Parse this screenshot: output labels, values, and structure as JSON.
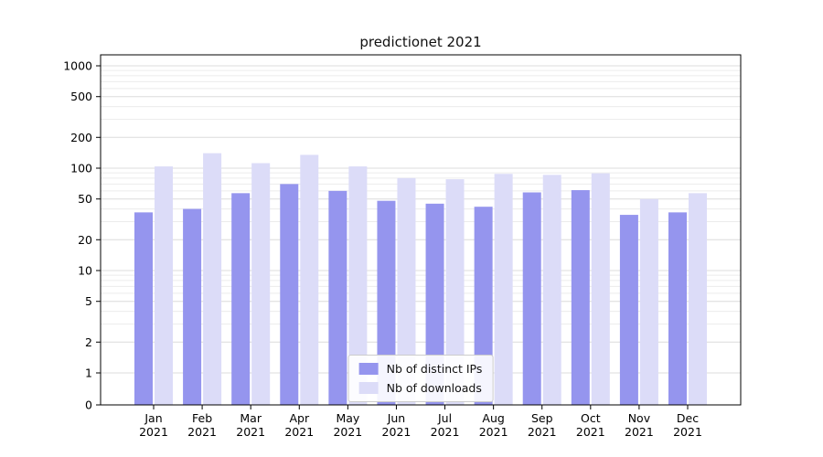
{
  "chart_data": {
    "type": "bar",
    "title": "predictionet 2021",
    "year": "2021",
    "categories": [
      "Jan",
      "Feb",
      "Mar",
      "Apr",
      "May",
      "Jun",
      "Jul",
      "Aug",
      "Sep",
      "Oct",
      "Nov",
      "Dec"
    ],
    "series": [
      {
        "name": "Nb of distinct IPs",
        "color": "#9595ee",
        "values": [
          37,
          40,
          57,
          70,
          60,
          48,
          45,
          42,
          58,
          61,
          35,
          37
        ]
      },
      {
        "name": "Nb of downloads",
        "color": "#dcdcf8",
        "values": [
          104,
          140,
          112,
          135,
          104,
          80,
          78,
          88,
          86,
          89,
          50,
          57
        ]
      }
    ],
    "yscale": "symlog",
    "yticks": [
      0,
      1,
      2,
      5,
      10,
      20,
      50,
      100,
      200,
      500,
      1000
    ],
    "ylim": [
      0,
      1300
    ],
    "xlabel": "",
    "ylabel": "",
    "grid": true,
    "legend_position": "lower center",
    "colors": {
      "grid_major": "#dcdcdc",
      "grid_minor": "#ececec",
      "axis": "#000000",
      "tick_text": "#000000"
    }
  }
}
